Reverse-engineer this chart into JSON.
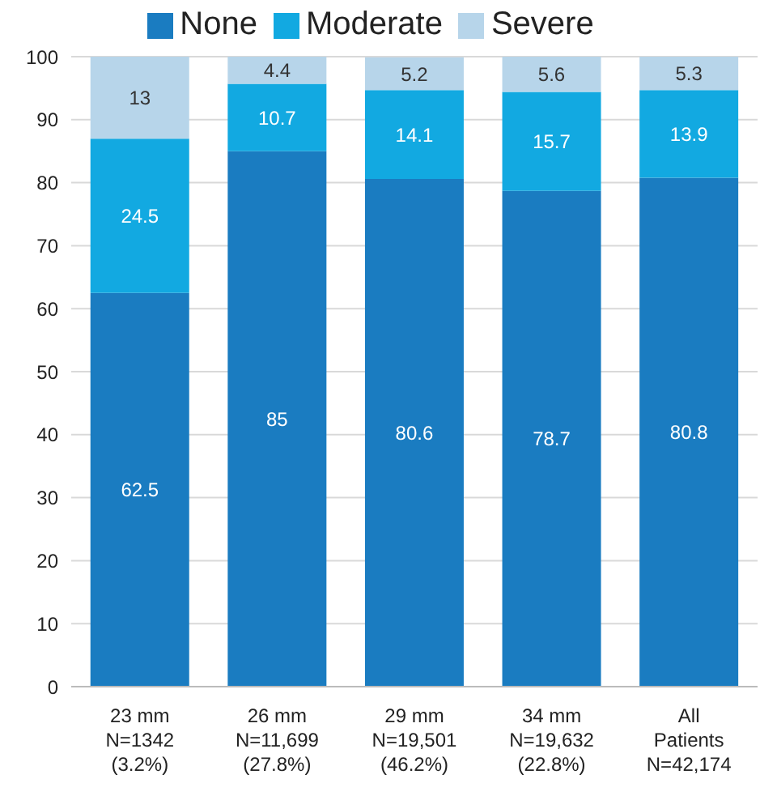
{
  "chart_data": {
    "type": "bar",
    "stacked": true,
    "categories": [
      "23 mm\nN=1342\n(3.2%)",
      "26 mm\nN=11,699\n(27.8%)",
      "29 mm\nN=19,501\n(46.2%)",
      "34 mm\nN=19,632\n(22.8%)",
      "All\nPatients\nN=42,174"
    ],
    "series": [
      {
        "name": "None",
        "color": "#1a7cc1",
        "values": [
          62.5,
          85,
          80.6,
          78.7,
          80.8
        ]
      },
      {
        "name": "Moderate",
        "color": "#12a9e1",
        "values": [
          24.5,
          10.7,
          14.1,
          15.7,
          13.9
        ]
      },
      {
        "name": "Severe",
        "color": "#b7d5ea",
        "values": [
          13,
          4.4,
          5.2,
          5.6,
          5.3
        ]
      }
    ],
    "ylim": [
      0,
      100
    ],
    "yticks": [
      0,
      10,
      20,
      30,
      40,
      50,
      60,
      70,
      80,
      90,
      100
    ],
    "grid": "y",
    "legend": "top",
    "data_labels": true
  }
}
